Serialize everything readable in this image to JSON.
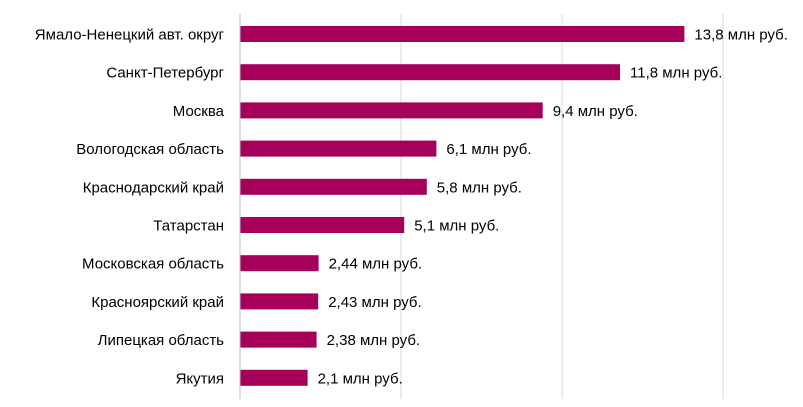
{
  "chart_data": {
    "type": "bar",
    "orientation": "horizontal",
    "categories": [
      "Ямало-Ненецкий авт. округ",
      "Санкт-Петербург",
      "Москва",
      "Вологодская область",
      "Краснодарский край",
      "Татарстан",
      "Московская область",
      "Красноярский край",
      "Липецкая область",
      "Якутия"
    ],
    "values": [
      13.8,
      11.8,
      9.4,
      6.1,
      5.8,
      5.1,
      2.44,
      2.43,
      2.38,
      2.1
    ],
    "value_labels": [
      "13,8 млн руб.",
      "11,8 млн руб.",
      "9,4 млн руб.",
      "6,1 млн руб.",
      "5,8 млн руб.",
      "5,1 млн руб.",
      "2,44 млн руб.",
      "2,43 млн руб.",
      "2,38 млн руб.",
      "2,1 млн руб."
    ],
    "xlim": [
      0,
      17.5
    ],
    "gridlines_x": [
      0,
      5,
      10,
      15
    ],
    "grid": true,
    "legend": "none",
    "title": "",
    "xlabel": "",
    "ylabel": "",
    "colors": {
      "bar": "#a5005a",
      "grid": "#d9d9d9",
      "axis": "#bfbfbf"
    }
  }
}
